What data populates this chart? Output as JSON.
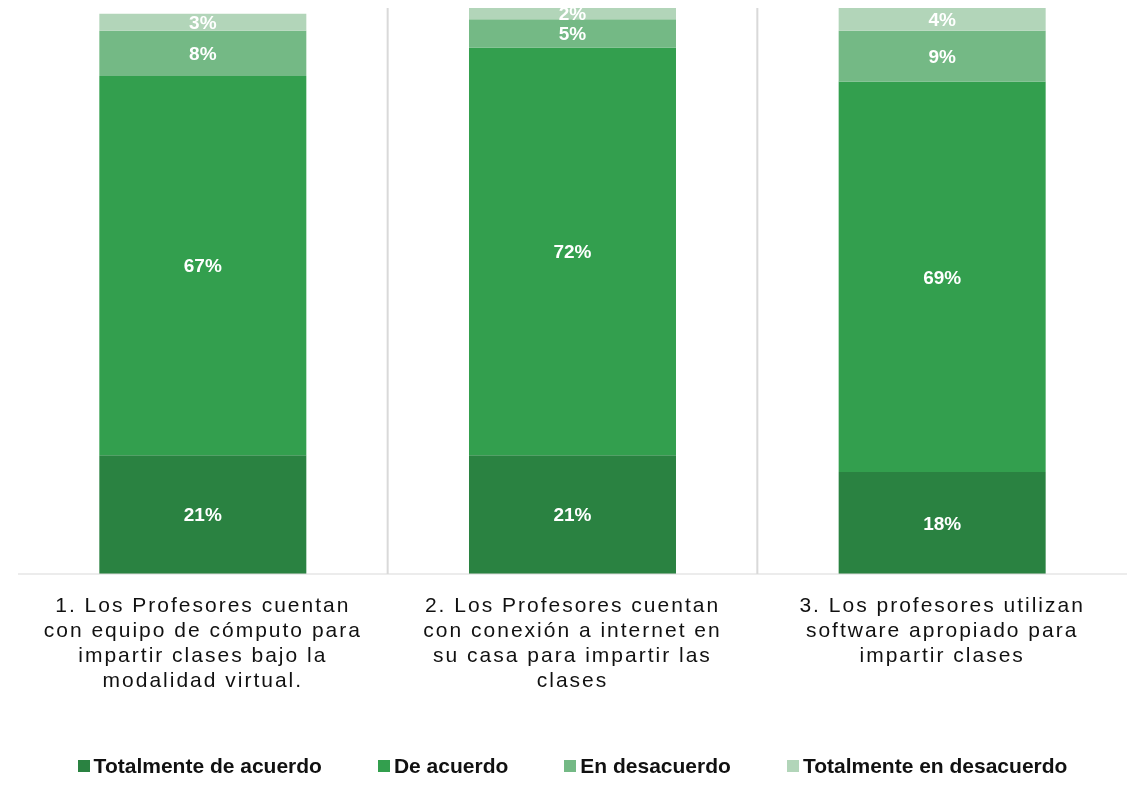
{
  "chart_data": {
    "type": "bar",
    "stacked": true,
    "grid": "x",
    "legend": "bottom",
    "categories": [
      "1. Los Profesores cuentan con equipo de cómputo para impartir clases bajo la modalidad virtual.",
      "2. Los Profesores cuentan con conexión a internet en su casa para impartir las clases",
      "3. Los profesores utilizan software apropiado para impartir clases"
    ],
    "series": [
      {
        "name": "Totalmente de acuerdo",
        "color": "#2a8241",
        "values": [
          21,
          21,
          18
        ],
        "value_labels": [
          "21%",
          "21%",
          "18%"
        ]
      },
      {
        "name": "De acuerdo",
        "color": "#339f4e",
        "values": [
          67,
          72,
          69
        ],
        "value_labels": [
          "67%",
          "72%",
          "69%"
        ]
      },
      {
        "name": "En desacuerdo",
        "color": "#74b985",
        "values": [
          8,
          5,
          9
        ],
        "value_labels": [
          "8%",
          "5%",
          "9%"
        ]
      },
      {
        "name": "Totalmente en desacuerdo",
        "color": "#b2d5b9",
        "values": [
          3,
          2,
          4
        ],
        "value_labels": [
          "3%",
          "2%",
          "4%"
        ]
      }
    ]
  }
}
